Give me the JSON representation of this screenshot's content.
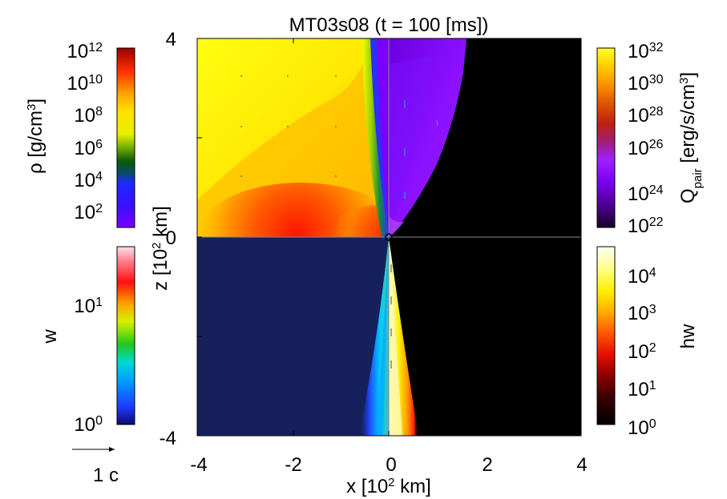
{
  "chart_data": {
    "type": "heatmap",
    "title": "MT03s08 (t = 100 [ms])",
    "xlabel": "x [10² km]",
    "ylabel": "z [10² km]",
    "xlim": [
      -4,
      4
    ],
    "ylim": [
      -4,
      4
    ],
    "x_ticks": [
      "-4",
      "-2",
      "0",
      "2",
      "4"
    ],
    "y_ticks": [
      "-4",
      "0",
      "4"
    ],
    "velocity_scale_label": "1 c",
    "quadrants": {
      "upper_left": "ρ",
      "upper_right": "Q_pair",
      "lower_left": "w",
      "lower_right": "hw"
    },
    "colorbars": {
      "rho": {
        "label": "ρ [g/cm³]",
        "scale": "log",
        "range": [
          10,
          1000000000000.0
        ],
        "colormap": [
          "#7a00ff",
          "#1a1aff",
          "#0a5a0a",
          "#e8f000",
          "#ffa000",
          "#ff2000",
          "#990000"
        ],
        "ticks": [
          {
            "base": "10",
            "exp": "12"
          },
          {
            "base": "10",
            "exp": "10"
          },
          {
            "base": "10",
            "exp": "8"
          },
          {
            "base": "10",
            "exp": "6"
          },
          {
            "base": "10",
            "exp": "4"
          },
          {
            "base": "10",
            "exp": "2"
          }
        ]
      },
      "w": {
        "label": "w",
        "scale": "log",
        "range": [
          1,
          30
        ],
        "colormap": [
          "#0a0a6e",
          "#1f4bff",
          "#00d0ff",
          "#1ec81e",
          "#f0f000",
          "#ff8000",
          "#ff1010",
          "#ffd0e0"
        ],
        "ticks": [
          {
            "base": "10",
            "exp": "1"
          },
          {
            "base": "10",
            "exp": "0"
          }
        ]
      },
      "qpair": {
        "label_main": "Q",
        "label_sub": "pair",
        "label_units": " [erg/s/cm³]",
        "scale": "log",
        "range": [
          1e+22,
          1e+32
        ],
        "colormap": [
          "#200030",
          "#6a00d0",
          "#9a20ff",
          "#a0207a",
          "#c02020",
          "#e05a00",
          "#ffa000",
          "#ffd800",
          "#ffff40"
        ],
        "ticks": [
          {
            "base": "10",
            "exp": "32"
          },
          {
            "base": "10",
            "exp": "30"
          },
          {
            "base": "10",
            "exp": "28"
          },
          {
            "base": "10",
            "exp": "26"
          },
          {
            "base": "10",
            "exp": "24"
          },
          {
            "base": "10",
            "exp": "22"
          }
        ]
      },
      "hw": {
        "label": "hw",
        "scale": "log",
        "range": [
          1,
          30000
        ],
        "colormap": [
          "#000000",
          "#500000",
          "#b00000",
          "#ff2a00",
          "#ff9a00",
          "#ffe000",
          "#ffff80",
          "#fffff0"
        ],
        "ticks": [
          {
            "base": "10",
            "exp": "4"
          },
          {
            "base": "10",
            "exp": "3"
          },
          {
            "base": "10",
            "exp": "2"
          },
          {
            "base": "10",
            "exp": "1"
          },
          {
            "base": "10",
            "exp": "0"
          }
        ]
      }
    }
  }
}
